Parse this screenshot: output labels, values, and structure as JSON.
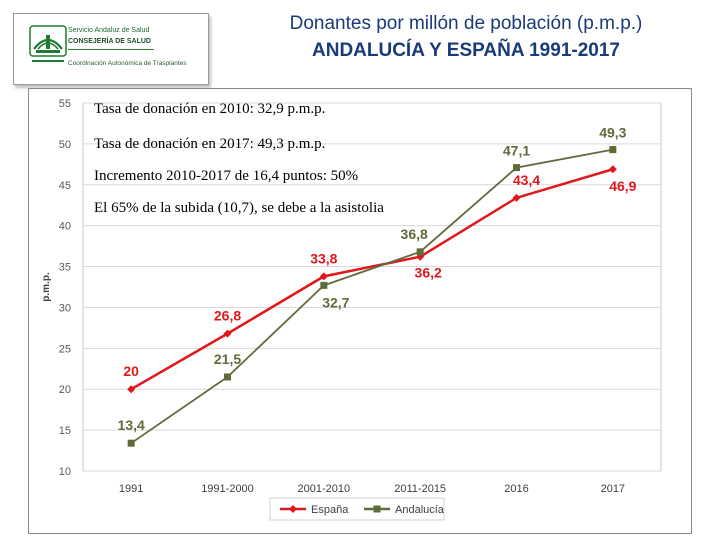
{
  "header": {
    "title_line1": "Donantes por millón de población (p.m.p.)",
    "title_line2": "ANDALUCÍA Y ESPAÑA 1991-2017"
  },
  "logo": {
    "line1": "Servicio Andaluz de Salud",
    "line2": "CONSEJERÍA DE SALUD",
    "line3": "Coordinación Autonómica de Trasplantes",
    "color": "#1f6b2e"
  },
  "annotations": [
    "Tasa de donación en 2010: 32,9 p.m.p.",
    "Tasa de donación en 2017: 49,3 p.m.p.",
    "Incremento 2010-2017 de 16,4 puntos: 50%",
    "El 65% de la subida (10,7), se debe a la asistolia"
  ],
  "chart_data": {
    "type": "line",
    "categories": [
      "1991",
      "1991-2000",
      "2001-2010",
      "2011-2015",
      "2016",
      "2017"
    ],
    "ylabel": "p.m.p.",
    "ylim": [
      10,
      55
    ],
    "yticks": [
      "10",
      "15",
      "20",
      "25",
      "30",
      "35",
      "40",
      "45",
      "50",
      "55"
    ],
    "grid": true,
    "legend_position": "bottom",
    "series": [
      {
        "name": "España",
        "color": "#e0181b",
        "marker": "diamond",
        "values": [
          20,
          26.8,
          33.8,
          36.2,
          43.4,
          46.9
        ],
        "labels": [
          "20",
          "26,8",
          "33,8",
          "36,2",
          "43,4",
          "46,9"
        ]
      },
      {
        "name": "Andalucía",
        "color": "#5e6b3a",
        "marker": "square",
        "values": [
          13.4,
          21.5,
          32.7,
          36.8,
          47.1,
          49.3
        ],
        "labels": [
          "13,4",
          "21,5",
          "32,7",
          "36,8",
          "47,1",
          "49,3"
        ]
      }
    ]
  }
}
